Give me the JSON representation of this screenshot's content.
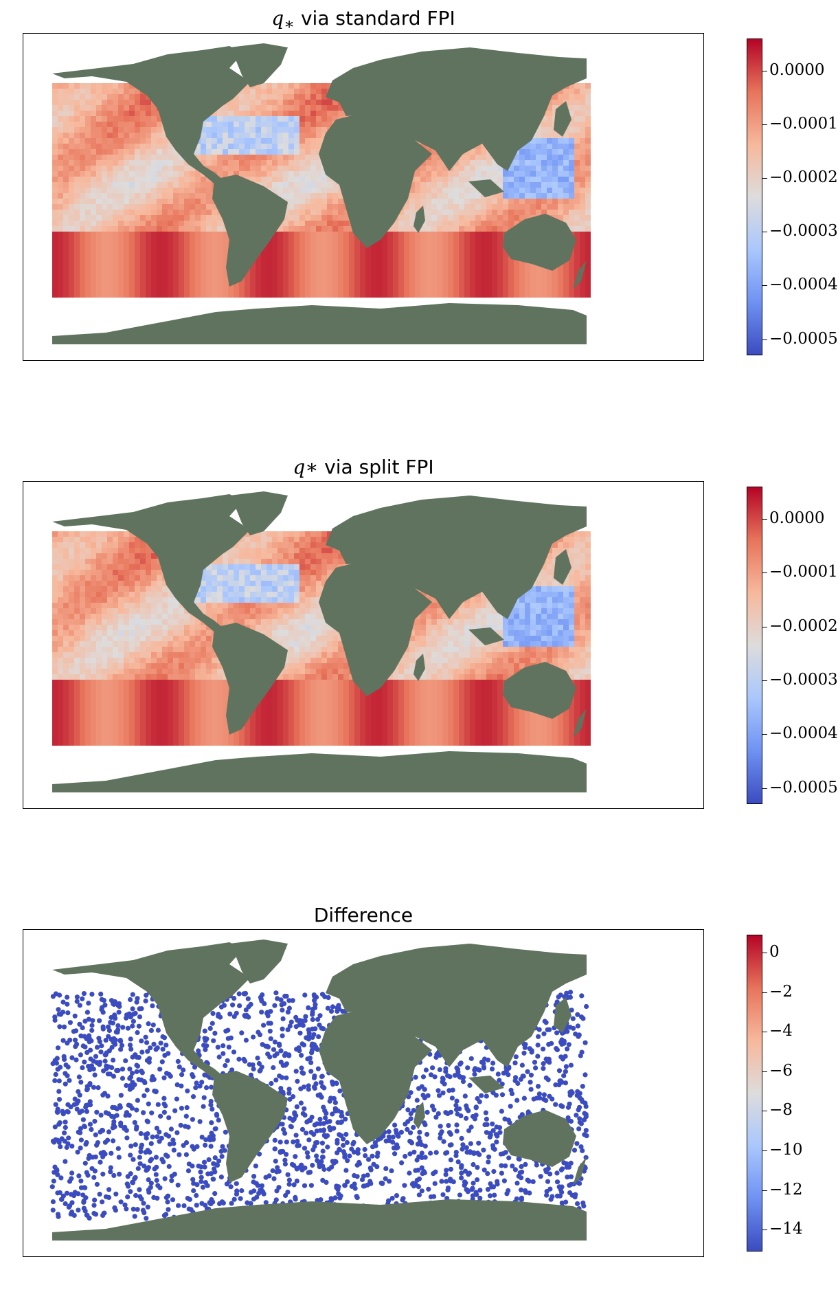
{
  "colors": {
    "land": "#5f735e",
    "ocean_bg": "#ffffff",
    "cmap": [
      "#3b4cc0",
      "#6f92f3",
      "#aac7fd",
      "#dddcdc",
      "#f7b89c",
      "#e7745b",
      "#b40426"
    ]
  },
  "panels": [
    {
      "title_math": "q",
      "title_sub": "∗",
      "title_text": " via standard FPI",
      "colorbar": {
        "min": -0.00053,
        "max": 6e-05,
        "ticks": [
          "0.0000",
          "−0.0001",
          "−0.0002",
          "−0.0003",
          "−0.0004",
          "−0.0005"
        ]
      }
    },
    {
      "title_math": "q∗",
      "title_sub": "",
      "title_text": " via split FPI",
      "colorbar": {
        "min": -0.00053,
        "max": 6e-05,
        "ticks": [
          "0.0000",
          "−0.0001",
          "−0.0002",
          "−0.0003",
          "−0.0004",
          "−0.0005"
        ]
      }
    },
    {
      "title_math": "",
      "title_sub": "",
      "title_text": "Difference",
      "colorbar": {
        "min": -15.1,
        "max": 0.9,
        "ticks": [
          "0",
          "−2",
          "−4",
          "−6",
          "−8",
          "−10",
          "−12",
          "−14"
        ]
      }
    }
  ]
}
